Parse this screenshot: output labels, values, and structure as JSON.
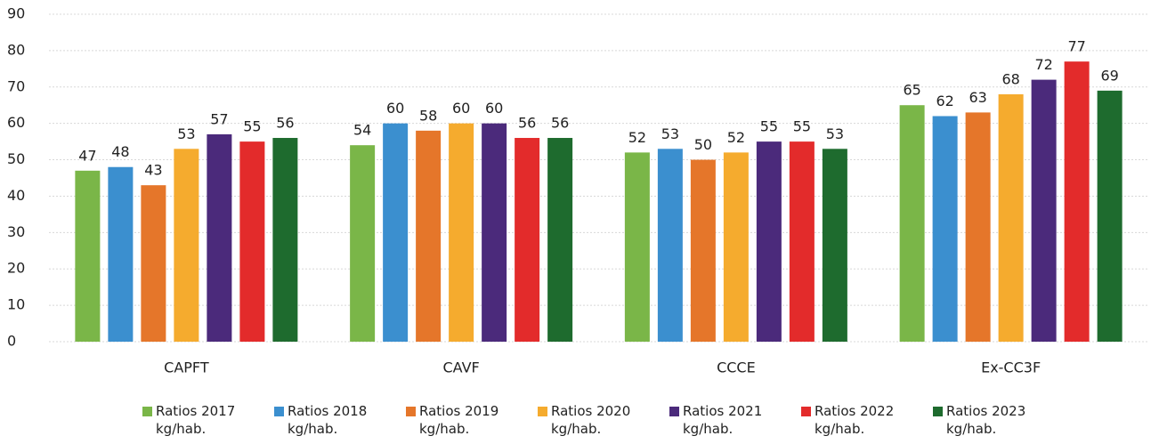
{
  "chart_data": {
    "type": "bar",
    "categories": [
      "CAPFT",
      "CAVF",
      "CCCE",
      "Ex-CC3F"
    ],
    "series": [
      {
        "name": "Ratios 2017 kg/hab.",
        "color": "#7ab648",
        "values": [
          47,
          54,
          52,
          65
        ]
      },
      {
        "name": "Ratios 2018 kg/hab.",
        "color": "#3b8fcf",
        "values": [
          48,
          60,
          53,
          62
        ]
      },
      {
        "name": "Ratios 2019 kg/hab.",
        "color": "#e5762a",
        "values": [
          43,
          58,
          50,
          63
        ]
      },
      {
        "name": "Ratios 2020 kg/hab.",
        "color": "#f5ab2e",
        "values": [
          53,
          60,
          52,
          68
        ]
      },
      {
        "name": "Ratios 2021 kg/hab.",
        "color": "#4b2a7b",
        "values": [
          57,
          60,
          55,
          72
        ]
      },
      {
        "name": "Ratios 2022 kg/hab.",
        "color": "#e32b2b",
        "values": [
          55,
          56,
          55,
          77
        ]
      },
      {
        "name": "Ratios 2023 kg/hab.",
        "color": "#1e6b2e",
        "values": [
          56,
          56,
          53,
          69
        ]
      }
    ],
    "ylim": [
      0,
      90
    ],
    "yticks": [
      0,
      10,
      20,
      30,
      40,
      50,
      60,
      70,
      80,
      90
    ],
    "grid": true
  }
}
